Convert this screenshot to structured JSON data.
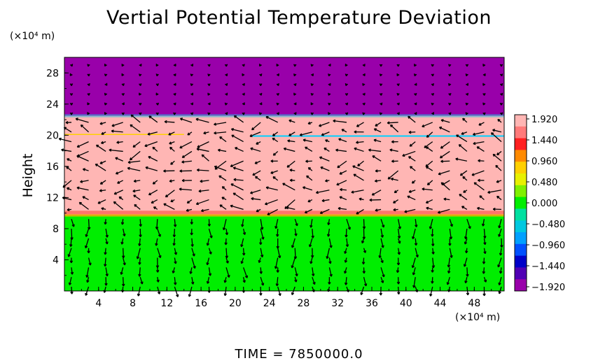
{
  "chart_data": {
    "type": "heatmap",
    "title": "Vertial Potential Temperature Deviation",
    "ylabel": "Height",
    "xlabel": "",
    "x_unit": "(×10⁴ m)",
    "y_unit": "(×10⁴ m)",
    "xlim": [
      0,
      51.5
    ],
    "ylim": [
      0,
      30
    ],
    "x_ticks": [
      "4",
      "8",
      "12",
      "16",
      "20",
      "24",
      "28",
      "32",
      "36",
      "40",
      "44",
      "48"
    ],
    "y_ticks": [
      "4",
      "8",
      "12",
      "16",
      "20",
      "24",
      "28"
    ],
    "layers": [
      {
        "y_from": 0,
        "y_to": 9.8,
        "value": 0.0,
        "color": "#00ee00"
      },
      {
        "y_from": 9.8,
        "y_to": 22.5,
        "value": 1.92,
        "color": "#ffb6b4"
      },
      {
        "y_from": 22.5,
        "y_to": 30,
        "value": -1.92,
        "color": "#9900aa"
      }
    ],
    "colorbar": {
      "labels": [
        "1.920",
        "1.440",
        "0.960",
        "0.480",
        "0.000",
        "−0.480",
        "−0.960",
        "−1.440",
        "−1.920"
      ],
      "colors": [
        "#ffb6b4",
        "#ff7a7a",
        "#ff2020",
        "#ff8a00",
        "#ffd000",
        "#e8f000",
        "#80f000",
        "#00ee00",
        "#00e0a0",
        "#00c8e0",
        "#00a0ff",
        "#0050ff",
        "#0000c8",
        "#5000b4",
        "#9900aa"
      ]
    },
    "grid": false,
    "legend": "right",
    "overlay": "velocity vectors"
  },
  "footer": {
    "time_label": "TIME  =  7850000.0"
  }
}
